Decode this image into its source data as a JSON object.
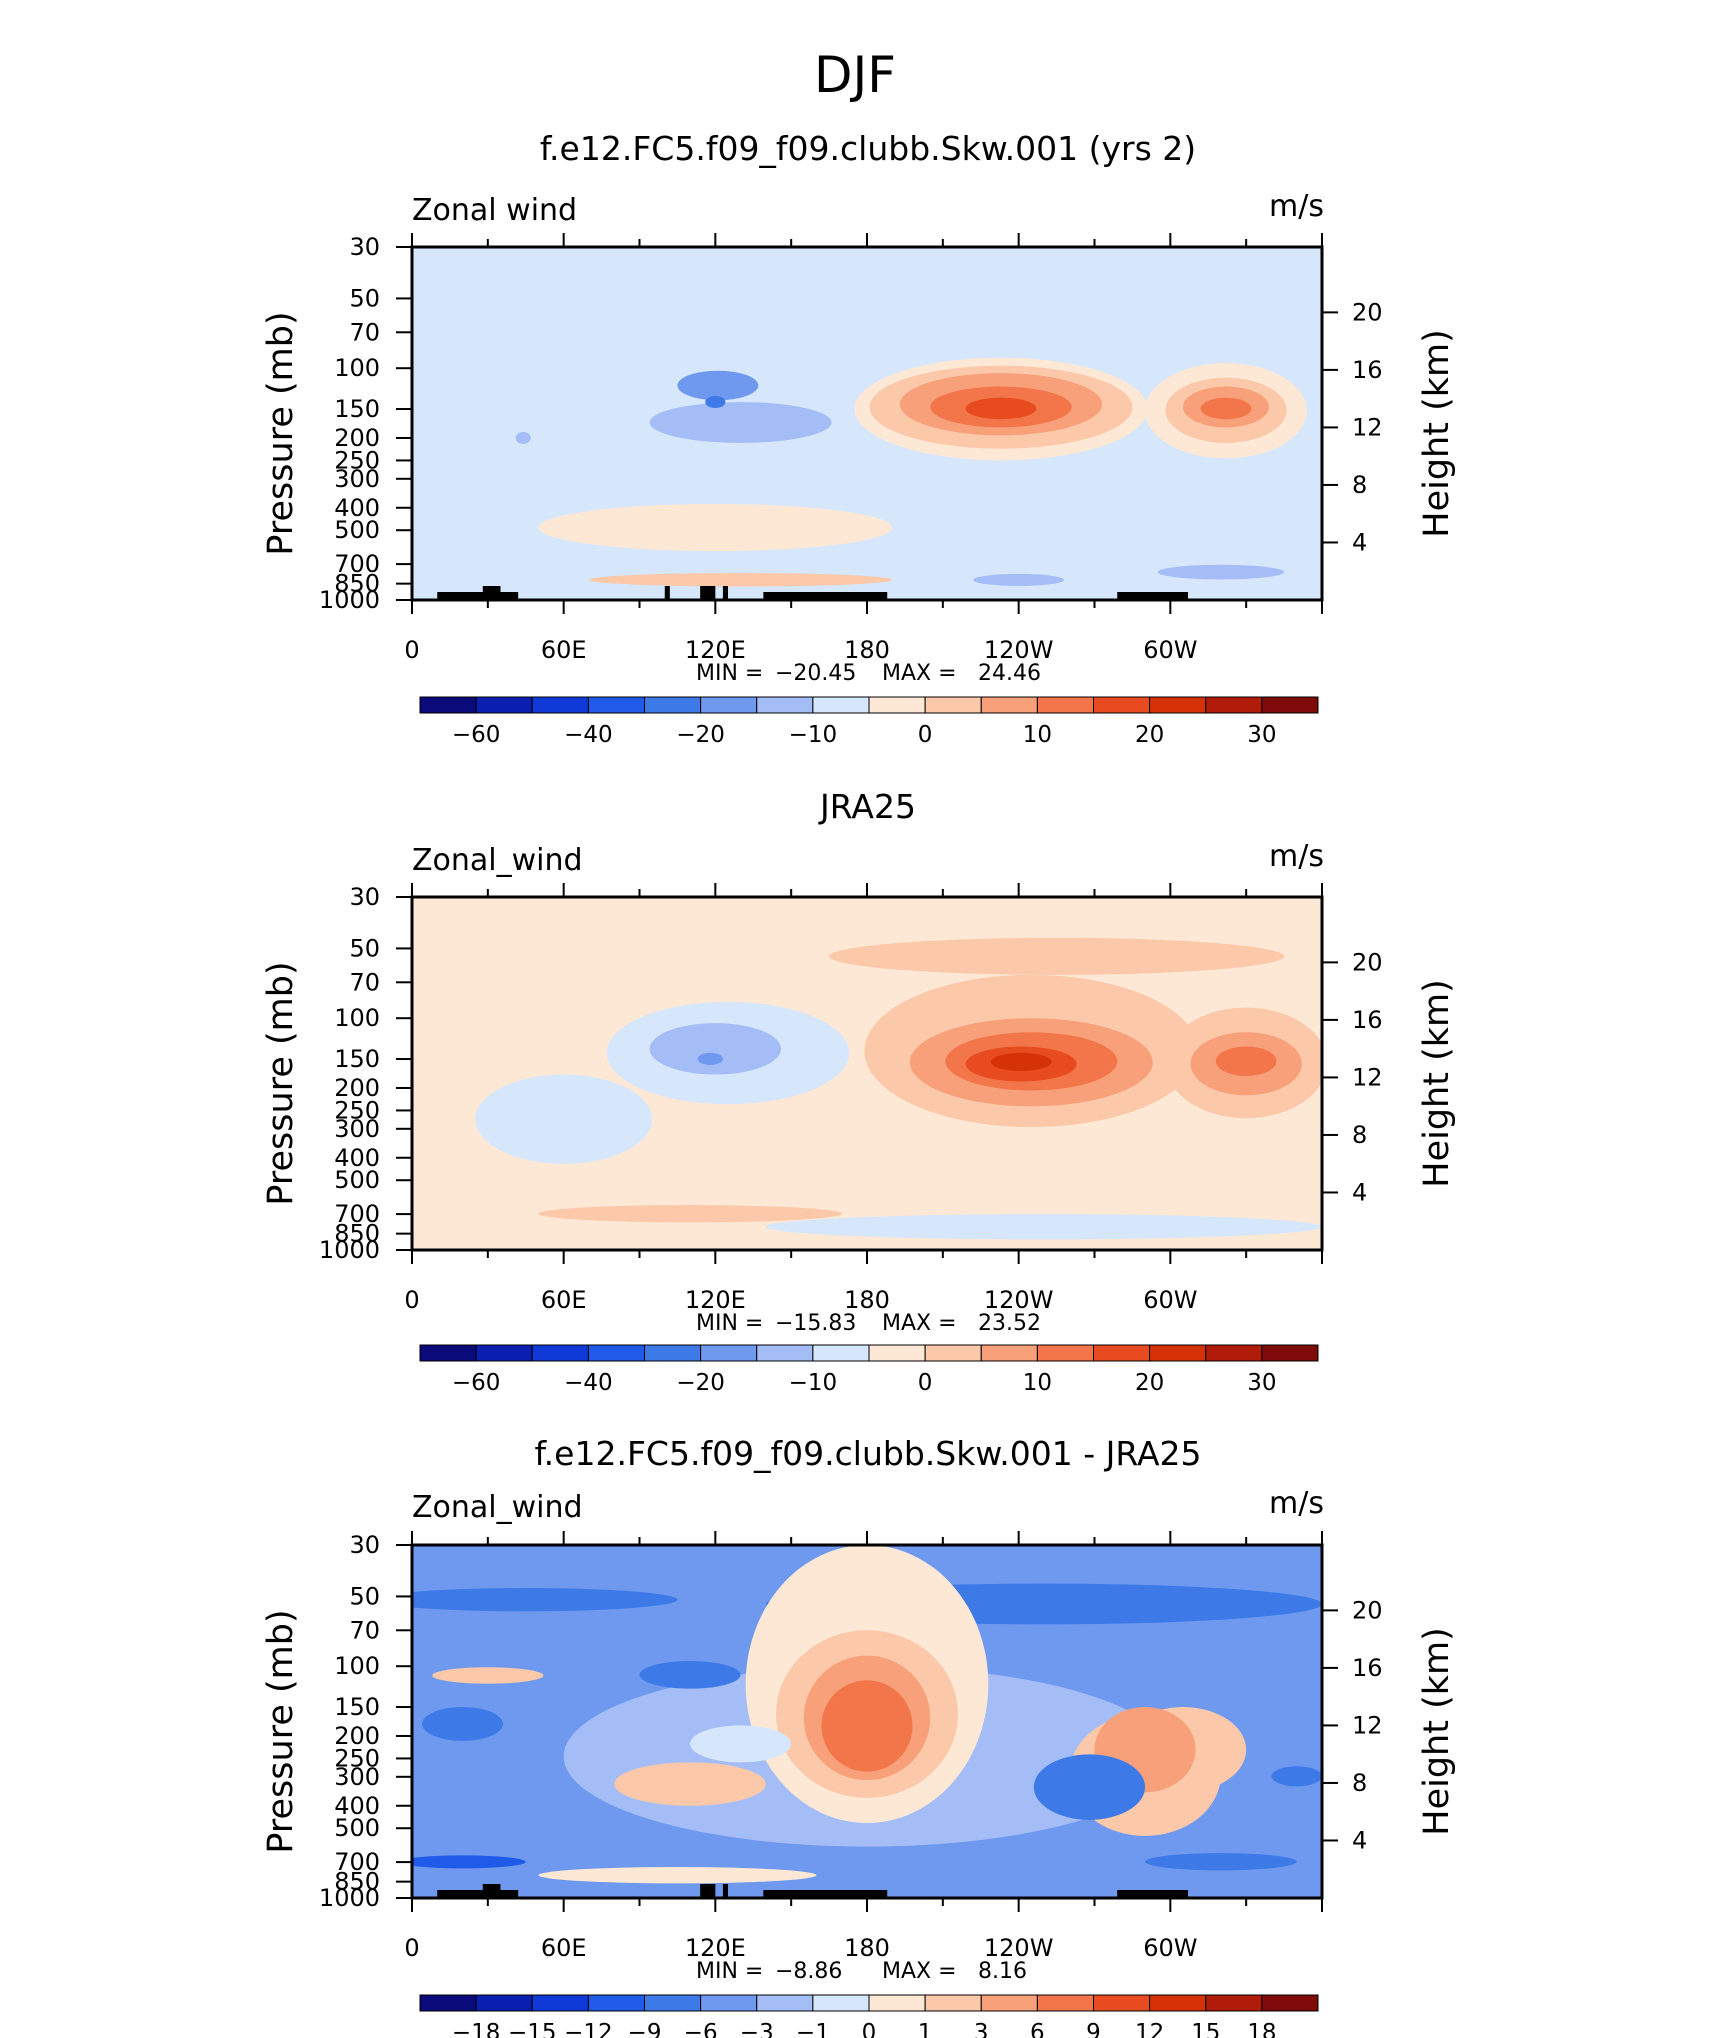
{
  "figure_title": "DJF",
  "colors": {
    "main_scale": [
      "#0a0a7a",
      "#0a1fb0",
      "#0f3ad8",
      "#1f5ae8",
      "#3d7ae8",
      "#6e99ef",
      "#a4bdf6",
      "#d6e6fb",
      "#fde8d6",
      "#fbc8a9",
      "#f7a07a",
      "#f2764a",
      "#e94b20",
      "#d63208",
      "#b01b0a",
      "#7e0a0a"
    ],
    "diff_scale": [
      "#0a0a7a",
      "#0a1fb0",
      "#0f3ad8",
      "#1f5ae8",
      "#3d7ae8",
      "#6e99ef",
      "#a4bdf6",
      "#d6e6fb",
      "#fde8d6",
      "#fbc8a9",
      "#f7a07a",
      "#f2764a",
      "#e94b20",
      "#d63208",
      "#b01b0a",
      "#7e0a0a"
    ],
    "land": "#000000"
  },
  "chart_data": [
    {
      "type": "heatmap",
      "title": "f.e12.FC5.f09_f09.clubb.Skw.001 (yrs 2)",
      "variable_label": "Zonal wind",
      "units": "m/s",
      "ylabel": "Pressure (mb)",
      "ylabel_right": "Height (km)",
      "x_ticks": [
        "0",
        "60E",
        "120E",
        "180",
        "120W",
        "60W"
      ],
      "y_ticks": [
        "30",
        "50",
        "70",
        "100",
        "150",
        "200",
        "250",
        "300",
        "400",
        "500",
        "700",
        "850",
        "1000"
      ],
      "y_right_ticks": [
        "20",
        "16",
        "12",
        "8",
        "4"
      ],
      "min_label": "MIN =",
      "min": "−20.45",
      "max_label": "MAX =",
      "max": "24.46",
      "colorbar_labels": [
        "−60",
        "−40",
        "−20",
        "−10",
        "0",
        "10",
        "20",
        "30"
      ],
      "background_level": 7,
      "features": [
        {
          "lon": 130,
          "lev": 175,
          "level": 6,
          "wlon": 36,
          "wlev": 70
        },
        {
          "lon": 121,
          "lev": 120,
          "level": 5,
          "wlon": 16,
          "wlev": 35
        },
        {
          "lon": 120,
          "lev": 140,
          "level": 4,
          "wlon": 4,
          "wlev": 12
        },
        {
          "lon": 44,
          "lev": 200,
          "level": 6,
          "wlon": 3,
          "wlev": 12
        },
        {
          "lon": 233,
          "lev": 170,
          "level": 8,
          "wlon": 58,
          "wlev": 160
        },
        {
          "lon": 233,
          "lev": 160,
          "level": 9,
          "wlon": 52,
          "wlev": 125
        },
        {
          "lon": 233,
          "lev": 150,
          "level": 10,
          "wlon": 40,
          "wlev": 90
        },
        {
          "lon": 233,
          "lev": 150,
          "level": 11,
          "wlon": 28,
          "wlev": 60
        },
        {
          "lon": 233,
          "lev": 150,
          "level": 12,
          "wlon": 14,
          "wlev": 32
        },
        {
          "lon": 322,
          "lev": 170,
          "level": 8,
          "wlon": 32,
          "wlev": 150
        },
        {
          "lon": 322,
          "lev": 160,
          "level": 9,
          "wlon": 24,
          "wlev": 100
        },
        {
          "lon": 322,
          "lev": 150,
          "level": 10,
          "wlon": 17,
          "wlev": 60
        },
        {
          "lon": 322,
          "lev": 150,
          "level": 11,
          "wlon": 10,
          "wlev": 32
        },
        {
          "lon": 120,
          "lev": 500,
          "level": 8,
          "wlon": 70,
          "wlev": 230
        },
        {
          "lon": 130,
          "lev": 820,
          "level": 9,
          "wlon": 60,
          "wlev": 110
        },
        {
          "lon": 240,
          "lev": 820,
          "level": 6,
          "wlon": 18,
          "wlev": 70
        },
        {
          "lon": 320,
          "lev": 760,
          "level": 6,
          "wlon": 25,
          "wlev": 110
        }
      ],
      "land_segments": [
        [
          10,
          42
        ],
        [
          28,
          35
        ],
        [
          100,
          102
        ],
        [
          114,
          120
        ],
        [
          123,
          125
        ],
        [
          139,
          188
        ],
        [
          279,
          307
        ]
      ]
    },
    {
      "type": "heatmap",
      "title": "JRA25",
      "variable_label": "Zonal_wind",
      "units": "m/s",
      "ylabel": "Pressure (mb)",
      "ylabel_right": "Height (km)",
      "x_ticks": [
        "0",
        "60E",
        "120E",
        "180",
        "120W",
        "60W"
      ],
      "y_ticks": [
        "30",
        "50",
        "70",
        "100",
        "150",
        "200",
        "250",
        "300",
        "400",
        "500",
        "700",
        "850",
        "1000"
      ],
      "y_right_ticks": [
        "20",
        "16",
        "12",
        "8",
        "4"
      ],
      "min_label": "MIN =",
      "min": "−15.83",
      "max_label": "MAX =",
      "max": "23.52",
      "colorbar_labels": [
        "−60",
        "−40",
        "−20",
        "−10",
        "0",
        "10",
        "20",
        "30"
      ],
      "background_level": 8,
      "features": [
        {
          "lon": 60,
          "lev": 300,
          "level": 7,
          "wlon": 35,
          "wlev": 250
        },
        {
          "lon": 125,
          "lev": 160,
          "level": 7,
          "wlon": 48,
          "wlev": 150
        },
        {
          "lon": 120,
          "lev": 140,
          "level": 6,
          "wlon": 26,
          "wlev": 70
        },
        {
          "lon": 118,
          "lev": 150,
          "level": 5,
          "wlon": 5,
          "wlev": 15
        },
        {
          "lon": 250,
          "lev": 800,
          "level": 7,
          "wlon": 110,
          "wlev": 200
        },
        {
          "lon": 245,
          "lev": 180,
          "level": 9,
          "wlon": 66,
          "wlev": 230
        },
        {
          "lon": 245,
          "lev": 170,
          "level": 10,
          "wlon": 48,
          "wlev": 140
        },
        {
          "lon": 245,
          "lev": 160,
          "level": 11,
          "wlon": 34,
          "wlev": 90
        },
        {
          "lon": 241,
          "lev": 160,
          "level": 12,
          "wlon": 22,
          "wlev": 55
        },
        {
          "lon": 241,
          "lev": 155,
          "level": 13,
          "wlon": 12,
          "wlev": 28
        },
        {
          "lon": 330,
          "lev": 180,
          "level": 9,
          "wlon": 32,
          "wlev": 180
        },
        {
          "lon": 330,
          "lev": 165,
          "level": 10,
          "wlon": 22,
          "wlev": 100
        },
        {
          "lon": 330,
          "lev": 155,
          "level": 11,
          "wlon": 12,
          "wlev": 45
        },
        {
          "lon": 255,
          "lev": 55,
          "level": 9,
          "wlon": 90,
          "wlev": 20
        },
        {
          "lon": 110,
          "lev": 700,
          "level": 9,
          "wlon": 60,
          "wlev": 120
        }
      ],
      "land_segments": []
    },
    {
      "type": "heatmap",
      "title": "f.e12.FC5.f09_f09.clubb.Skw.001 - JRA25",
      "variable_label": "Zonal_wind",
      "units": "m/s",
      "ylabel": "Pressure (mb)",
      "ylabel_right": "Height (km)",
      "x_ticks": [
        "0",
        "60E",
        "120E",
        "180",
        "120W",
        "60W"
      ],
      "y_ticks": [
        "30",
        "50",
        "70",
        "100",
        "150",
        "200",
        "250",
        "300",
        "400",
        "500",
        "700",
        "850",
        "1000"
      ],
      "y_right_ticks": [
        "20",
        "16",
        "12",
        "8",
        "4"
      ],
      "min_label": "MIN =",
      "min": "−8.86",
      "max_label": "MAX =",
      "max": "8.16",
      "colorbar_labels": [
        "−18",
        "−15",
        "−12",
        "−9",
        "−6",
        "−3",
        "−1",
        "0",
        "1",
        "3",
        "6",
        "9",
        "12",
        "15",
        "18"
      ],
      "background_level": 5,
      "features": [
        {
          "lon": 45,
          "lev": 52,
          "level": 4,
          "wlon": 60,
          "wlev": 12
        },
        {
          "lon": 250,
          "lev": 55,
          "level": 4,
          "wlon": 110,
          "wlev": 22
        },
        {
          "lon": 180,
          "lev": 350,
          "level": 6,
          "wlon": 120,
          "wlev": 500
        },
        {
          "lon": 180,
          "lev": 250,
          "level": 8,
          "wlon": 48,
          "wlev": 450
        },
        {
          "lon": 180,
          "lev": 220,
          "level": 9,
          "wlon": 36,
          "wlev": 300
        },
        {
          "lon": 180,
          "lev": 200,
          "level": 10,
          "wlon": 25,
          "wlev": 220
        },
        {
          "lon": 180,
          "lev": 200,
          "level": 11,
          "wlon": 18,
          "wlev": 170
        },
        {
          "lon": 110,
          "lev": 330,
          "level": 9,
          "wlon": 30,
          "wlev": 140
        },
        {
          "lon": 290,
          "lev": 350,
          "level": 9,
          "wlon": 30,
          "wlev": 380
        },
        {
          "lon": 305,
          "lev": 250,
          "level": 9,
          "wlon": 25,
          "wlev": 200
        },
        {
          "lon": 290,
          "lev": 250,
          "level": 10,
          "wlon": 20,
          "wlev": 200
        },
        {
          "lon": 268,
          "lev": 350,
          "level": 4,
          "wlon": 22,
          "wlev": 220
        },
        {
          "lon": 110,
          "lev": 110,
          "level": 4,
          "wlon": 20,
          "wlev": 30
        },
        {
          "lon": 30,
          "lev": 110,
          "level": 9,
          "wlon": 22,
          "wlev": 18
        },
        {
          "lon": 20,
          "lev": 180,
          "level": 4,
          "wlon": 16,
          "wlev": 60
        },
        {
          "lon": 20,
          "lev": 700,
          "level": 3,
          "wlon": 25,
          "wlev": 90
        },
        {
          "lon": 320,
          "lev": 700,
          "level": 4,
          "wlon": 30,
          "wlev": 120
        },
        {
          "lon": 350,
          "lev": 300,
          "level": 4,
          "wlon": 10,
          "wlev": 60
        },
        {
          "lon": 105,
          "lev": 800,
          "level": 8,
          "wlon": 55,
          "wlev": 130
        },
        {
          "lon": 130,
          "lev": 220,
          "level": 7,
          "wlon": 20,
          "wlev": 80
        }
      ],
      "land_segments": [
        [
          10,
          42
        ],
        [
          28,
          35
        ],
        [
          114,
          120
        ],
        [
          123,
          125
        ],
        [
          139,
          188
        ],
        [
          279,
          307
        ]
      ]
    }
  ]
}
